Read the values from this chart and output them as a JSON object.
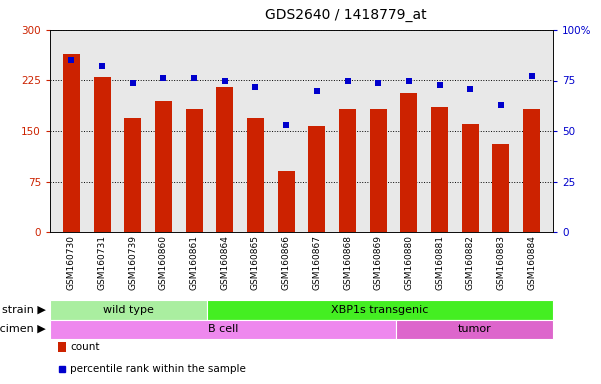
{
  "title": "GDS2640 / 1418779_at",
  "samples": [
    "GSM160730",
    "GSM160731",
    "GSM160739",
    "GSM160860",
    "GSM160861",
    "GSM160864",
    "GSM160865",
    "GSM160866",
    "GSM160867",
    "GSM160868",
    "GSM160869",
    "GSM160880",
    "GSM160881",
    "GSM160882",
    "GSM160883",
    "GSM160884"
  ],
  "counts": [
    265,
    230,
    170,
    195,
    183,
    215,
    170,
    90,
    158,
    183,
    182,
    207,
    185,
    160,
    130,
    182
  ],
  "percentiles": [
    85,
    82,
    74,
    76,
    76,
    75,
    72,
    53,
    70,
    75,
    74,
    75,
    73,
    71,
    63,
    77
  ],
  "ylim_left": [
    0,
    300
  ],
  "ylim_right": [
    0,
    100
  ],
  "yticks_left": [
    0,
    75,
    150,
    225,
    300
  ],
  "yticks_right": [
    0,
    25,
    50,
    75,
    100
  ],
  "yticklabels_right": [
    "0",
    "25",
    "50",
    "75",
    "100%"
  ],
  "bar_color": "#cc2200",
  "dot_color": "#0000cc",
  "plot_bg": "#e8e8e8",
  "fig_bg": "#ffffff",
  "strain_groups": [
    {
      "label": "wild type",
      "start": 0,
      "end": 5,
      "color": "#aaeea0"
    },
    {
      "label": "XBP1s transgenic",
      "start": 5,
      "end": 16,
      "color": "#44ee22"
    }
  ],
  "specimen_groups": [
    {
      "label": "B cell",
      "start": 0,
      "end": 11,
      "color": "#ee88ee"
    },
    {
      "label": "tumor",
      "start": 11,
      "end": 16,
      "color": "#dd66cc"
    }
  ],
  "legend_items": [
    {
      "marker": "rect",
      "color": "#cc2200",
      "label": "count"
    },
    {
      "marker": "square",
      "color": "#0000cc",
      "label": "percentile rank within the sample"
    }
  ],
  "title_fontsize": 10,
  "tick_fontsize": 6.5,
  "annot_fontsize": 8,
  "bar_width": 0.55
}
